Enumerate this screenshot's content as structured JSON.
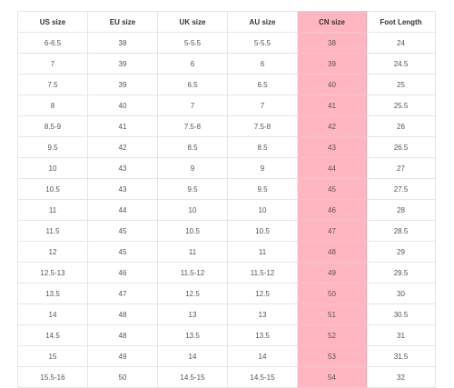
{
  "accent_color": "#ffb6c1",
  "headers": [
    "US size",
    "EU size",
    "UK size",
    "AU size",
    "CN size",
    "Foot Length"
  ],
  "highlighted_column": "CN size",
  "rows": [
    [
      "6-6.5",
      "38",
      "5-5.5",
      "5-5.5",
      "38",
      "24"
    ],
    [
      "7",
      "39",
      "6",
      "6",
      "39",
      "24.5"
    ],
    [
      "7.5",
      "39",
      "6.5",
      "6.5",
      "40",
      "25"
    ],
    [
      "8",
      "40",
      "7",
      "7",
      "41",
      "25.5"
    ],
    [
      "8.5-9",
      "41",
      "7.5-8",
      "7.5-8",
      "42",
      "26"
    ],
    [
      "9.5",
      "42",
      "8.5",
      "8.5",
      "43",
      "26.5"
    ],
    [
      "10",
      "43",
      "9",
      "9",
      "44",
      "27"
    ],
    [
      "10.5",
      "43",
      "9.5",
      "9.5",
      "45",
      "27.5"
    ],
    [
      "11",
      "44",
      "10",
      "10",
      "46",
      "28"
    ],
    [
      "11.5",
      "45",
      "10.5",
      "10.5",
      "47",
      "28.5"
    ],
    [
      "12",
      "45",
      "11",
      "11",
      "48",
      "29"
    ],
    [
      "12.5-13",
      "46",
      "11.5-12",
      "11.5-12",
      "49",
      "29.5"
    ],
    [
      "13.5",
      "47",
      "12.5",
      "12.5",
      "50",
      "30"
    ],
    [
      "14",
      "48",
      "13",
      "13",
      "51",
      "30.5"
    ],
    [
      "14.5",
      "48",
      "13.5",
      "13.5",
      "52",
      "31"
    ],
    [
      "15",
      "49",
      "14",
      "14",
      "53",
      "31.5"
    ],
    [
      "15.5-16",
      "50",
      "14.5-15",
      "14.5-15",
      "54",
      "32"
    ]
  ]
}
